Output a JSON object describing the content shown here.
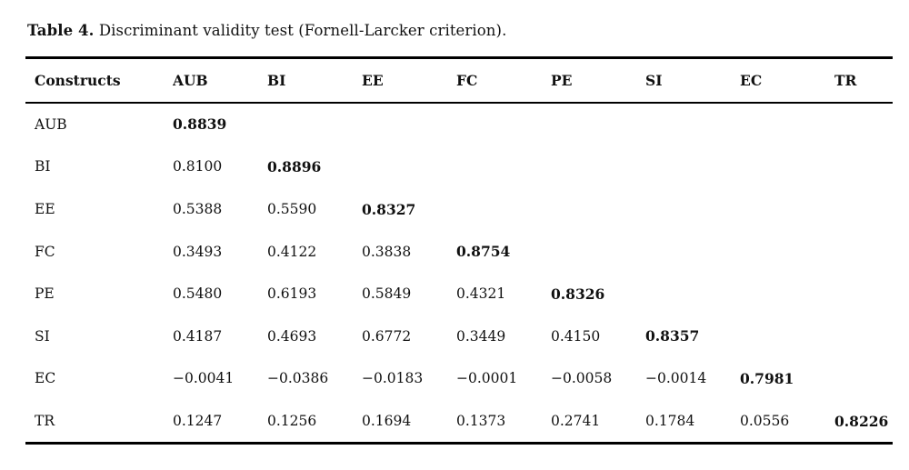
{
  "colors": {
    "background": "#ffffff",
    "text": "#111111",
    "rule": "#000000"
  },
  "caption": {
    "label": "Table 4.",
    "text": " Discriminant validity test (Fornell-Larcker criterion)."
  },
  "table": {
    "columns": [
      "Constructs",
      "AUB",
      "BI",
      "EE",
      "FC",
      "PE",
      "SI",
      "EC",
      "TR"
    ],
    "rows": [
      {
        "label": "AUB",
        "diagonal_index": 0,
        "values": [
          "0.8839",
          "",
          "",
          "",
          "",
          "",
          "",
          ""
        ]
      },
      {
        "label": "BI",
        "diagonal_index": 1,
        "values": [
          "0.8100",
          "0.8896",
          "",
          "",
          "",
          "",
          "",
          ""
        ]
      },
      {
        "label": "EE",
        "diagonal_index": 2,
        "values": [
          "0.5388",
          "0.5590",
          "0.8327",
          "",
          "",
          "",
          "",
          ""
        ]
      },
      {
        "label": "FC",
        "diagonal_index": 3,
        "values": [
          "0.3493",
          "0.4122",
          "0.3838",
          "0.8754",
          "",
          "",
          "",
          ""
        ]
      },
      {
        "label": "PE",
        "diagonal_index": 4,
        "values": [
          "0.5480",
          "0.6193",
          "0.5849",
          "0.4321",
          "0.8326",
          "",
          "",
          ""
        ]
      },
      {
        "label": "SI",
        "diagonal_index": 5,
        "values": [
          "0.4187",
          "0.4693",
          "0.6772",
          "0.3449",
          "0.4150",
          "0.8357",
          "",
          ""
        ]
      },
      {
        "label": "EC",
        "diagonal_index": 6,
        "values": [
          "−0.0041",
          "−0.0386",
          "−0.0183",
          "−0.0001",
          "−0.0058",
          "−0.0014",
          "0.7981",
          ""
        ]
      },
      {
        "label": "TR",
        "diagonal_index": 7,
        "values": [
          "0.1247",
          "0.1256",
          "0.1694",
          "0.1373",
          "0.2741",
          "0.1784",
          "0.0556",
          "0.8226"
        ]
      }
    ]
  }
}
